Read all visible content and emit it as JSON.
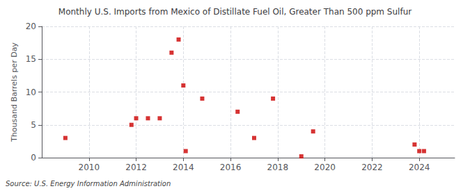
{
  "chart_data": {
    "type": "scatter",
    "title": "Monthly U.S. Imports from Mexico of Distillate Fuel Oil, Greater Than 500 ppm Sulfur",
    "ylabel": "Thousand Barrels per Day",
    "annotation": "Source: U.S. Energy Information Administration",
    "color": "#cc0000",
    "marker": "square",
    "x": [
      2009.0,
      2011.8,
      2012.0,
      2012.5,
      2013.0,
      2013.5,
      2013.8,
      2014.0,
      2014.1,
      2014.8,
      2016.3,
      2017.0,
      2017.8,
      2019.0,
      2019.5,
      2023.8,
      2024.0,
      2024.2
    ],
    "values": [
      3.0,
      5.0,
      6.0,
      6.0,
      6.0,
      16.0,
      18.0,
      11.0,
      1.0,
      9.0,
      7.0,
      3.0,
      9.0,
      0.2,
      4.0,
      2.0,
      1.0,
      1.0
    ],
    "xlim": [
      2008.0,
      2025.5
    ],
    "ylim": [
      0,
      20
    ],
    "xticks": [
      2010,
      2012,
      2014,
      2016,
      2018,
      2020,
      2022,
      2024
    ],
    "yticks": [
      0,
      5,
      10,
      15,
      20
    ],
    "grid": true
  }
}
